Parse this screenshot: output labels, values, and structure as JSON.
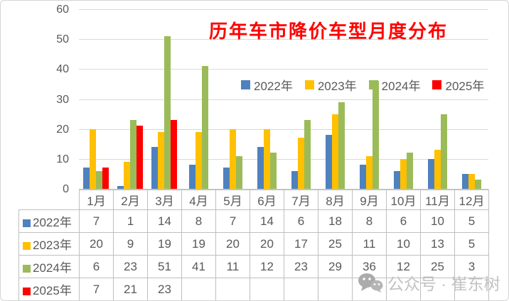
{
  "chart": {
    "title": "历年车市降价车型月度分布"
  },
  "watermark": {
    "icon": "wechat-icon",
    "text": "公众号 · 崔东树"
  },
  "colors": {
    "title": "#ff0000",
    "axis_text": "#595959",
    "table_text": "#595959",
    "table_border": "#bfbfbf",
    "gridline": "#d9d9d9",
    "watermark_text": "#c2c2c2",
    "watermark_icon": "#ababab"
  },
  "chart_data": {
    "type": "bar",
    "title": "历年车市降价车型月度分布",
    "categories": [
      "1月",
      "2月",
      "3月",
      "4月",
      "5月",
      "6月",
      "7月",
      "8月",
      "9月",
      "10月",
      "11月",
      "12月"
    ],
    "series": [
      {
        "name": "2022年",
        "color": "#4f81bd",
        "values": [
          7,
          1,
          14,
          8,
          7,
          14,
          6,
          18,
          8,
          6,
          10,
          5
        ]
      },
      {
        "name": "2023年",
        "color": "#ffc000",
        "values": [
          20,
          9,
          19,
          19,
          20,
          20,
          17,
          25,
          11,
          10,
          13,
          5
        ]
      },
      {
        "name": "2024年",
        "color": "#9bbb59",
        "values": [
          6,
          23,
          51,
          41,
          11,
          12,
          23,
          29,
          36,
          12,
          25,
          3
        ]
      },
      {
        "name": "2025年",
        "color": "#ff0000",
        "values": [
          7,
          21,
          23,
          null,
          null,
          null,
          null,
          null,
          null,
          null,
          null,
          null
        ]
      }
    ],
    "ylim": [
      0,
      60
    ],
    "yticks": [
      0,
      10,
      20,
      30,
      40,
      50,
      60
    ],
    "grid": true,
    "legend_position": "top-center-inside",
    "data_table_attached": true
  }
}
